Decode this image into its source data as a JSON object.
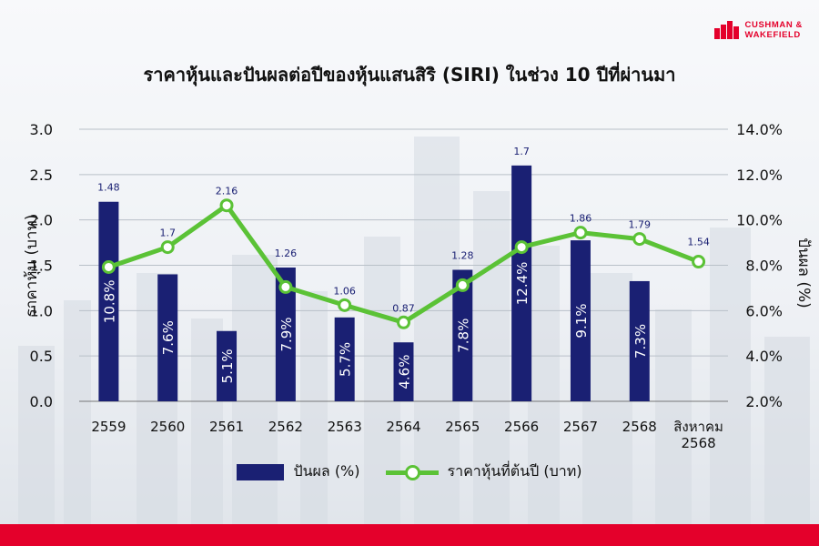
{
  "logo": {
    "line1": "CUSHMAN &",
    "line2": "WAKEFIELD"
  },
  "colors": {
    "bar": "#1a2073",
    "line": "#5bc236",
    "accent": "#e4002b"
  },
  "chart_data": {
    "type": "bar",
    "title": "ราคาหุ้นและปันผลต่อปีของหุ้นแสนสิริ (SIRI) ในช่วง 10 ปีที่ผ่านมา",
    "categories": [
      "2559",
      "2560",
      "2561",
      "2562",
      "2563",
      "2564",
      "2565",
      "2566",
      "2567",
      "2568",
      "สิงหาคม 2568"
    ],
    "ylabel_left": "ราคาหุ้น (บาท)",
    "ylabel_right": "ปันผล (%)",
    "ylim_left": [
      0,
      3.0
    ],
    "ylim_right": [
      2.0,
      14.0
    ],
    "left_ticks": [
      "0.0",
      "0.5",
      "1.0",
      "1.5",
      "2.0",
      "2.5",
      "3.0"
    ],
    "right_ticks": [
      "2.0%",
      "4.0%",
      "6.0%",
      "8.0%",
      "10.0%",
      "12.0%",
      "14.0%"
    ],
    "grid": true,
    "legend_position": "bottom",
    "series": [
      {
        "name": "ปันผล (%)",
        "type": "bar",
        "axis": "right",
        "values": [
          10.8,
          7.6,
          5.1,
          7.9,
          5.7,
          4.6,
          7.8,
          12.4,
          9.1,
          7.3,
          null
        ],
        "labels": [
          "10.8%",
          "7.6%",
          "5.1%",
          "7.9%",
          "5.7%",
          "4.6%",
          "7.8%",
          "12.4%",
          "9.1%",
          "7.3%",
          ""
        ]
      },
      {
        "name": "ราคาหุ้นที่ต้นปี (บาท)",
        "type": "line",
        "axis": "left",
        "values": [
          1.48,
          1.7,
          2.16,
          1.26,
          1.06,
          0.87,
          1.28,
          1.7,
          1.86,
          1.79,
          1.54
        ],
        "labels": [
          "1.48",
          "1.7",
          "2.16",
          "1.26",
          "1.06",
          "0.87",
          "1.28",
          "1.7",
          "1.86",
          "1.79",
          "1.54"
        ]
      }
    ]
  }
}
